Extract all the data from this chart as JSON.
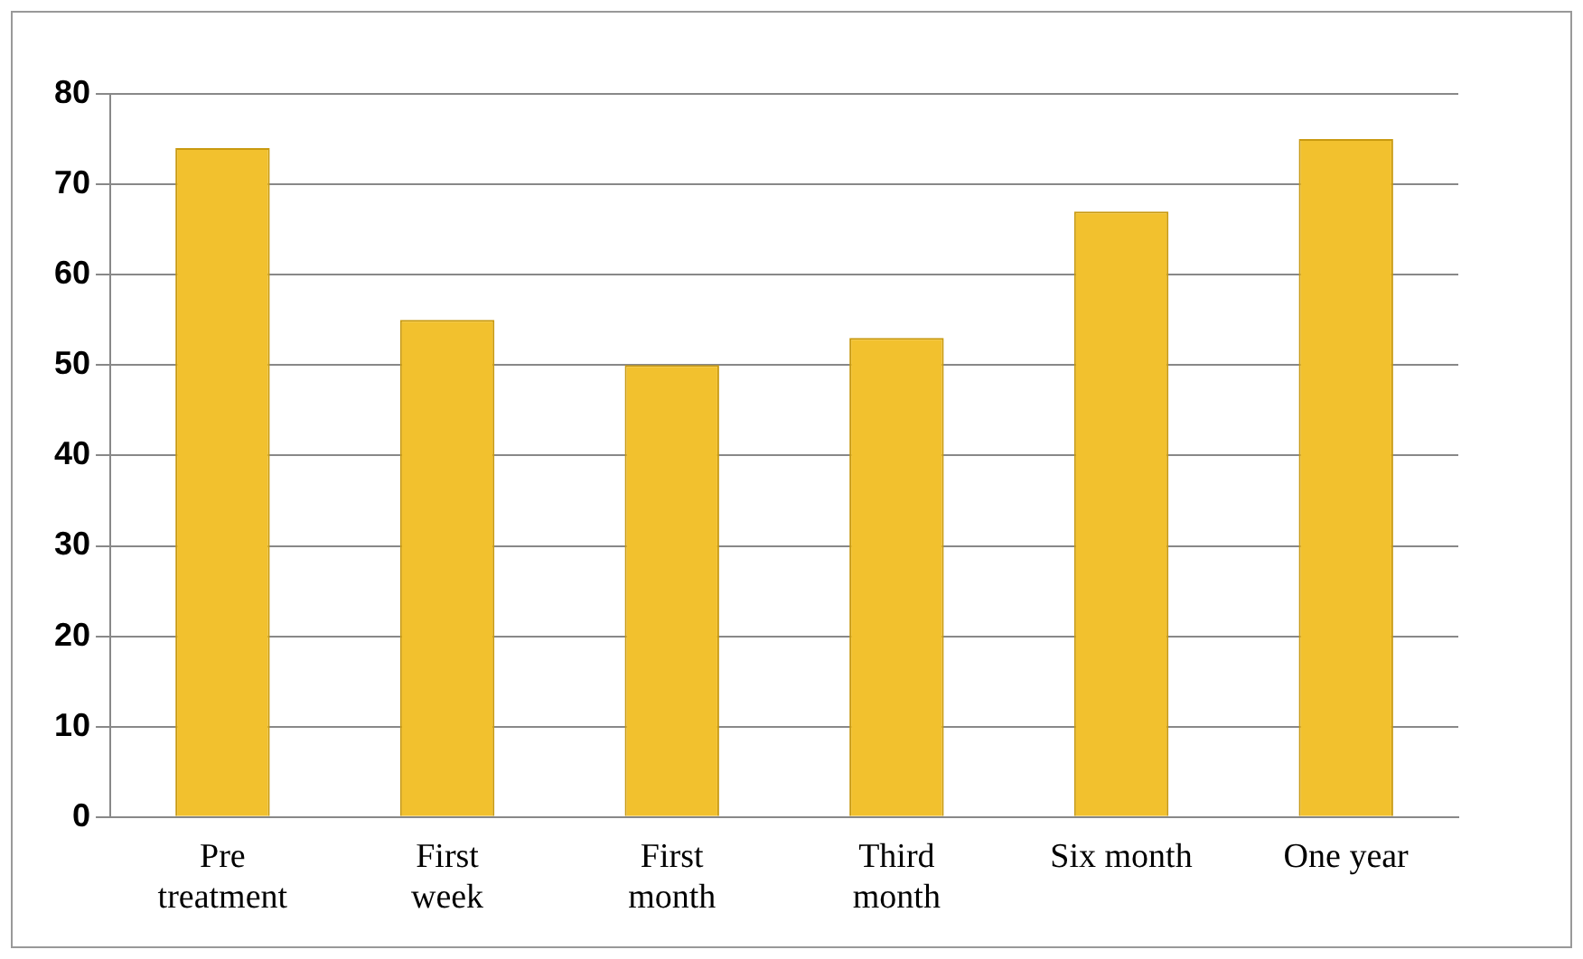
{
  "chart_data": {
    "type": "bar",
    "categories": [
      "Pre treatment",
      "First week",
      "First month",
      "Third month",
      "Six month",
      "One year"
    ],
    "values": [
      74,
      55,
      50,
      53,
      67,
      75
    ],
    "color": "#f2c12e",
    "ylim": [
      0,
      80
    ],
    "yticks": [
      0,
      10,
      20,
      30,
      40,
      50,
      60,
      70,
      80
    ],
    "grid": "y",
    "legend": false
  }
}
